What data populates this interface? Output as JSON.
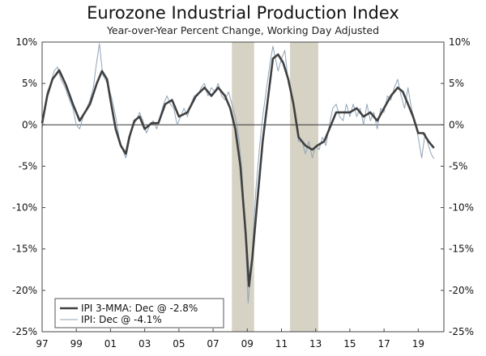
{
  "chart_data": {
    "type": "line",
    "title": "Eurozone Industrial Production Index",
    "subtitle": "Year-over-Year Percent Change, Working Day Adjusted",
    "ylim": [
      -25,
      10
    ],
    "y_ticks": [
      10,
      5,
      0,
      -5,
      -10,
      -15,
      -20,
      -25
    ],
    "y_tick_labels": [
      "10%",
      "5%",
      "0%",
      "-5%",
      "-10%",
      "-15%",
      "-20%",
      "-25%"
    ],
    "xlim": [
      1997,
      2020.5
    ],
    "x_ticks": [
      1997,
      1999,
      2001,
      2003,
      2005,
      2007,
      2009,
      2011,
      2013,
      2015,
      2017,
      2019
    ],
    "x_tick_labels": [
      "97",
      "99",
      "01",
      "03",
      "05",
      "07",
      "09",
      "11",
      "13",
      "15",
      "17",
      "19"
    ],
    "recessions": [
      {
        "start": 2008.1,
        "end": 2009.4
      },
      {
        "start": 2011.5,
        "end": 2013.15
      }
    ],
    "series": [
      {
        "name": "IPI 3-MMA",
        "legend": "IPI 3-MMA: Dec @ -2.8%",
        "color": "#404040",
        "x": [
          1997.0,
          1997.3,
          1997.6,
          1998.0,
          1998.4,
          1998.8,
          1999.2,
          1999.5,
          1999.8,
          2000.2,
          2000.5,
          2000.8,
          2001.0,
          2001.3,
          2001.6,
          2001.9,
          2002.1,
          2002.4,
          2002.7,
          2003.0,
          2003.4,
          2003.8,
          2004.2,
          2004.6,
          2005.0,
          2005.5,
          2006.0,
          2006.5,
          2006.9,
          2007.3,
          2007.7,
          2008.0,
          2008.3,
          2008.6,
          2008.9,
          2009.1,
          2009.3,
          2009.6,
          2009.9,
          2010.2,
          2010.5,
          2010.8,
          2011.1,
          2011.4,
          2011.7,
          2012.0,
          2012.4,
          2012.8,
          2013.1,
          2013.5,
          2013.8,
          2014.2,
          2014.6,
          2015.0,
          2015.4,
          2015.8,
          2016.2,
          2016.6,
          2017.0,
          2017.4,
          2017.8,
          2018.1,
          2018.4,
          2018.7,
          2019.0,
          2019.3,
          2019.6,
          2019.92
        ],
        "values": [
          0.2,
          3.5,
          5.5,
          6.6,
          4.8,
          2.5,
          0.5,
          1.5,
          2.5,
          5.0,
          6.5,
          5.5,
          3.0,
          -0.5,
          -2.5,
          -3.5,
          -1.5,
          0.5,
          1.0,
          -0.5,
          0.2,
          0.2,
          2.5,
          3.0,
          1.0,
          1.5,
          3.5,
          4.5,
          3.5,
          4.5,
          3.5,
          2.0,
          -0.5,
          -5.0,
          -13.0,
          -19.5,
          -16.0,
          -9.0,
          -2.0,
          3.0,
          8.0,
          8.5,
          7.5,
          5.5,
          2.5,
          -1.5,
          -2.5,
          -3.0,
          -2.5,
          -2.0,
          -0.5,
          1.5,
          1.5,
          1.5,
          2.0,
          1.0,
          1.5,
          0.5,
          2.0,
          3.5,
          4.5,
          4.0,
          2.5,
          1.0,
          -1.0,
          -1.0,
          -2.0,
          -2.8
        ]
      },
      {
        "name": "IPI",
        "legend": "IPI: Dec @ -4.1%",
        "color": "#8fa3b7",
        "x": [
          1997.0,
          1997.15,
          1997.3,
          1997.5,
          1997.7,
          1997.9,
          1998.1,
          1998.35,
          1998.6,
          1998.8,
          1999.0,
          1999.2,
          1999.4,
          1999.6,
          1999.8,
          2000.0,
          2000.15,
          2000.35,
          2000.55,
          2000.7,
          2000.9,
          2001.1,
          2001.3,
          2001.5,
          2001.7,
          2001.9,
          2002.1,
          2002.3,
          2002.5,
          2002.7,
          2002.9,
          2003.1,
          2003.3,
          2003.5,
          2003.7,
          2003.9,
          2004.1,
          2004.3,
          2004.5,
          2004.7,
          2004.9,
          2005.1,
          2005.3,
          2005.5,
          2005.7,
          2005.9,
          2006.1,
          2006.3,
          2006.5,
          2006.7,
          2006.9,
          2007.1,
          2007.3,
          2007.5,
          2007.7,
          2007.9,
          2008.1,
          2008.3,
          2008.5,
          2008.7,
          2008.9,
          2009.05,
          2009.15,
          2009.3,
          2009.5,
          2009.7,
          2009.9,
          2010.1,
          2010.3,
          2010.5,
          2010.65,
          2010.8,
          2011.0,
          2011.2,
          2011.4,
          2011.6,
          2011.8,
          2012.0,
          2012.2,
          2012.4,
          2012.6,
          2012.8,
          2013.0,
          2013.2,
          2013.4,
          2013.6,
          2013.8,
          2014.0,
          2014.2,
          2014.4,
          2014.6,
          2014.8,
          2015.0,
          2015.2,
          2015.4,
          2015.6,
          2015.8,
          2016.0,
          2016.2,
          2016.4,
          2016.6,
          2016.8,
          2017.0,
          2017.2,
          2017.4,
          2017.6,
          2017.8,
          2018.0,
          2018.2,
          2018.4,
          2018.6,
          2018.8,
          2019.0,
          2019.2,
          2019.4,
          2019.6,
          2019.75,
          2019.92
        ],
        "values": [
          -0.5,
          2.0,
          4.0,
          5.0,
          6.5,
          7.0,
          5.5,
          4.5,
          3.0,
          2.0,
          0.0,
          -0.5,
          1.0,
          2.0,
          3.0,
          4.5,
          7.0,
          9.8,
          6.0,
          5.5,
          4.5,
          3.0,
          1.0,
          -1.5,
          -3.0,
          -4.0,
          -2.0,
          0.0,
          0.5,
          1.5,
          0.5,
          -1.0,
          0.0,
          0.5,
          -0.5,
          1.0,
          2.5,
          3.5,
          2.5,
          2.0,
          0.0,
          1.0,
          2.0,
          1.0,
          2.5,
          3.5,
          3.5,
          4.5,
          5.0,
          3.5,
          4.5,
          4.0,
          5.0,
          3.5,
          3.0,
          4.0,
          2.5,
          1.0,
          -1.5,
          -6.0,
          -14.0,
          -21.5,
          -19.0,
          -15.0,
          -8.0,
          -3.0,
          1.0,
          4.0,
          7.0,
          9.5,
          8.0,
          6.5,
          8.0,
          9.0,
          5.0,
          3.5,
          1.0,
          -2.0,
          -2.0,
          -3.5,
          -2.0,
          -4.0,
          -2.5,
          -3.0,
          -1.5,
          -2.5,
          0.0,
          2.0,
          2.5,
          1.0,
          0.5,
          2.5,
          1.0,
          2.5,
          1.0,
          2.0,
          0.0,
          2.5,
          0.5,
          1.5,
          -0.5,
          2.0,
          1.5,
          3.5,
          3.0,
          4.5,
          5.5,
          3.5,
          2.0,
          4.5,
          2.0,
          0.5,
          -1.5,
          -4.0,
          -1.0,
          -2.5,
          -3.5,
          -4.1
        ]
      }
    ]
  }
}
